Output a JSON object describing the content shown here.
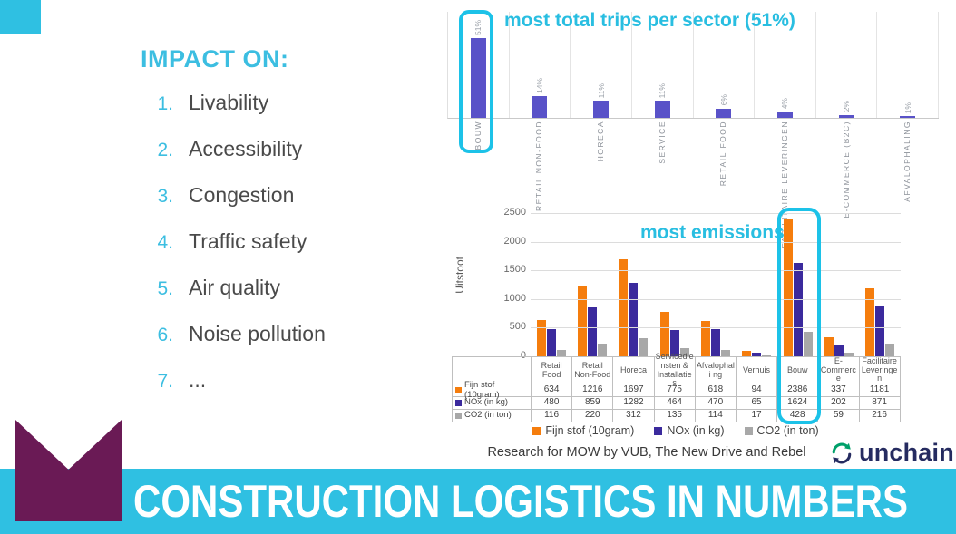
{
  "colors": {
    "accent_cyan": "#29BEE1",
    "highlight_cyan": "#1CC2E8",
    "banner_cyan": "#2FC0E2",
    "purple_flag": "#6A1A55",
    "trips_bar": "#5952C8",
    "orange": "#F57D0D",
    "indigo": "#3B2A9D",
    "gray": "#A8A8A8",
    "logo_navy": "#252B60",
    "logo_green": "#00A06A"
  },
  "impact": {
    "title": "IMPACT ON:",
    "items": [
      {
        "num": "1.",
        "label": "Livability"
      },
      {
        "num": "2.",
        "label": "Accessibility"
      },
      {
        "num": "3.",
        "label": "Congestion"
      },
      {
        "num": "4.",
        "label": "Traffic safety"
      },
      {
        "num": "5.",
        "label": "Air quality"
      },
      {
        "num": "6.",
        "label": "Noise pollution"
      },
      {
        "num": "7.",
        "label": "..."
      }
    ]
  },
  "annotations": {
    "trips_title": "most total trips per sector (51%)",
    "emissions_title": "most emissions"
  },
  "chart_data": [
    {
      "type": "bar",
      "name": "total-trips-per-sector",
      "title": "most total trips per sector (51%)",
      "categories": [
        "BOUW",
        "RETAIL NON-FOOD",
        "HORECA",
        "SERVICE",
        "RETAIL FOOD",
        "FACILITAIRE LEVERINGEN",
        "E-COMMERCE (B2C)",
        "AFVALOPHALING"
      ],
      "values": [
        51,
        14,
        11,
        11,
        6,
        4,
        2,
        1
      ],
      "value_labels": [
        "51%",
        "14%",
        "11%",
        "11%",
        "6%",
        "4%",
        "2%",
        "1%"
      ],
      "unit": "percent",
      "bar_color": "#5952C8",
      "highlight_category": "BOUW",
      "grid": "vertical-separators",
      "legend": "none"
    },
    {
      "type": "bar",
      "name": "emissions-by-sector",
      "title": "most emissions",
      "categories": [
        "Retail Food",
        "Retail Non-Food",
        "Horeca",
        "Servicedie nsten & Installaties",
        "Afvalophali ng",
        "Verhuis",
        "Bouw",
        "E- Commerce",
        "Facilitaire Leveringen"
      ],
      "series": [
        {
          "name": "Fijn stof (10gram)",
          "color": "#F57D0D",
          "values": [
            634,
            1216,
            1697,
            775,
            618,
            94,
            2386,
            337,
            1181
          ]
        },
        {
          "name": "NOx (in kg)",
          "color": "#3B2A9D",
          "values": [
            480,
            859,
            1282,
            464,
            470,
            65,
            1624,
            202,
            871
          ]
        },
        {
          "name": "CO2 (in ton)",
          "color": "#A8A8A8",
          "values": [
            116,
            220,
            312,
            135,
            114,
            17,
            428,
            59,
            216
          ]
        }
      ],
      "ylabel": "Uitstoot",
      "ylim": [
        0,
        2500
      ],
      "yticks": [
        0,
        500,
        1000,
        1500,
        2000,
        2500
      ],
      "grid": "horizontal",
      "legend_position": "bottom",
      "data_table": true,
      "highlight_category": "Bouw"
    }
  ],
  "caption": "Research for MOW by VUB, The New Drive and Rebel",
  "logo": {
    "text": "unchain",
    "icon": "circular-arrows-icon"
  },
  "banner": {
    "title": "CONSTRUCTION LOGISTICS IN NUMBERS"
  }
}
